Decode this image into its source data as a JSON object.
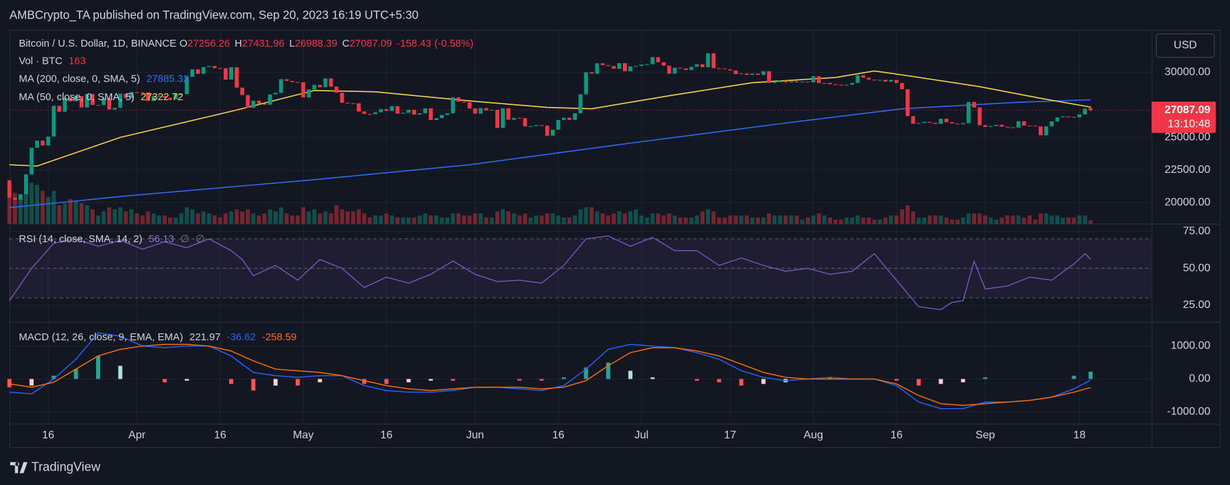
{
  "header": "AMBCrypto_TA published on TradingView.com, Sep 20, 2023 16:19 UTC+5:30",
  "footer": "TradingView",
  "chart_data": {
    "type": "candlestick",
    "title": "Bitcoin / U.S. Dollar, 1D, BINANCE",
    "currency": "USD",
    "grid": true,
    "up_color": "#089981",
    "down_color": "#f23645",
    "xlim": [
      0,
      206
    ],
    "xticks": [
      {
        "value": 7,
        "label": "16"
      },
      {
        "value": 23,
        "label": "Apr"
      },
      {
        "value": 38,
        "label": "16"
      },
      {
        "value": 53,
        "label": "May"
      },
      {
        "value": 68,
        "label": "16"
      },
      {
        "value": 84,
        "label": "Jun"
      },
      {
        "value": 99,
        "label": "16"
      },
      {
        "value": 114,
        "label": "Jul"
      },
      {
        "value": 130,
        "label": "17"
      },
      {
        "value": 145,
        "label": "Aug"
      },
      {
        "value": 160,
        "label": "16"
      },
      {
        "value": 176,
        "label": "Sep"
      },
      {
        "value": 193,
        "label": "18"
      }
    ],
    "ylim": [
      18373,
      33253
    ],
    "yticks": [
      {
        "value": 20000,
        "label": "20000.00"
      },
      {
        "value": 22500,
        "label": "22500.00"
      },
      {
        "value": 25000,
        "label": "25000.00"
      },
      {
        "value": 30000,
        "label": "30000.00"
      }
    ],
    "open": [
      21700,
      20360,
      20190,
      20630,
      22160,
      24200,
      24750,
      24380,
      25060,
      27420,
      26970,
      28040,
      27770,
      28170,
      27300,
      28330,
      27490,
      27490,
      27990,
      27140,
      27270,
      28350,
      28030,
      28480,
      28460,
      28450,
      27800,
      28170,
      28180,
      28040,
      27930,
      28330,
      28330,
      29650,
      30230,
      29880,
      30400,
      30480,
      30320,
      30310,
      29440,
      30390,
      28820,
      28250,
      27270,
      27820,
      27590,
      27510,
      28300,
      28420,
      29470,
      29340,
      29250,
      29230,
      28070,
      28680,
      29030,
      28850,
      29530,
      28900,
      28430,
      27660,
      27630,
      27620,
      26990,
      26800,
      26780,
      26930,
      27170,
      27030,
      27400,
      26820,
      26890,
      27120,
      26750,
      26850,
      27230,
      26330,
      26480,
      26720,
      26850,
      28080,
      27740,
      27700,
      27220,
      26820,
      27250,
      27070,
      27120,
      25730,
      27240,
      26350,
      26500,
      26480,
      25840,
      25860,
      25940,
      25900,
      25130,
      25590,
      26340,
      26510,
      26340,
      26850,
      28310,
      30000,
      29890,
      30690,
      30550,
      30480,
      30270,
      30700,
      30080,
      30450,
      30480,
      30590,
      30620,
      31160,
      30770,
      30510,
      29890,
      30350,
      30290,
      30170,
      30420,
      30620,
      30390,
      31460,
      30320,
      30290,
      30230,
      30140,
      29860,
      29910,
      29800,
      29900,
      29800,
      30080,
      29180,
      29230,
      29350,
      29220,
      29310,
      29230,
      29280,
      29230,
      29700,
      29170,
      29180,
      29080,
      29050,
      29040,
      29040,
      29180,
      29770,
      29580,
      29430,
      29400,
      29420,
      29280,
      29410,
      29170,
      28700,
      26630,
      26050,
      26100,
      26190,
      26120,
      26040,
      26430,
      26160,
      26060,
      26010,
      26090,
      27720,
      27300,
      25940,
      25800,
      25870,
      25970,
      25820,
      25780,
      25750,
      26240,
      25910,
      25900,
      25840,
      25160,
      25850,
      26230,
      26530,
      26610,
      26570,
      26530,
      26760,
      27256.26
    ],
    "close": [
      20360,
      20190,
      20630,
      22160,
      24200,
      24750,
      24380,
      25060,
      27420,
      26970,
      28040,
      27770,
      28170,
      27300,
      28330,
      27490,
      27490,
      27990,
      27140,
      27270,
      28350,
      28030,
      28480,
      28460,
      28450,
      27800,
      28170,
      28180,
      28040,
      27930,
      28330,
      28330,
      29650,
      30230,
      29880,
      30400,
      30480,
      30320,
      30310,
      29440,
      30390,
      28820,
      28250,
      27270,
      27820,
      27590,
      27510,
      28300,
      28420,
      29470,
      29340,
      29250,
      29230,
      28070,
      28680,
      29030,
      28850,
      29530,
      28900,
      28430,
      27660,
      27630,
      27620,
      26990,
      26800,
      26780,
      26930,
      27170,
      27030,
      27400,
      26820,
      26890,
      27120,
      26750,
      26850,
      27230,
      26330,
      26480,
      26720,
      26850,
      28080,
      27740,
      27700,
      27220,
      26820,
      27250,
      27070,
      27120,
      25730,
      27240,
      26350,
      26500,
      26480,
      25840,
      25860,
      25940,
      25900,
      25130,
      25590,
      26340,
      26510,
      26340,
      26850,
      28310,
      30000,
      29890,
      30690,
      30550,
      30480,
      30270,
      30700,
      30080,
      30450,
      30480,
      30590,
      30620,
      31160,
      30770,
      30510,
      29890,
      30350,
      30290,
      30170,
      30420,
      30620,
      30390,
      31460,
      30320,
      30290,
      30230,
      30140,
      29860,
      29910,
      29800,
      29900,
      29800,
      30080,
      29180,
      29230,
      29350,
      29220,
      29310,
      29230,
      29280,
      29230,
      29700,
      29170,
      29180,
      29080,
      29050,
      29040,
      29040,
      29180,
      29770,
      29580,
      29430,
      29400,
      29420,
      29280,
      29410,
      29170,
      28700,
      26630,
      26050,
      26100,
      26190,
      26120,
      26040,
      26430,
      26160,
      26060,
      26010,
      26090,
      27720,
      27300,
      25940,
      25800,
      25870,
      25970,
      25820,
      25780,
      25750,
      26240,
      25910,
      25900,
      25840,
      25160,
      25850,
      26230,
      26530,
      26610,
      26570,
      26530,
      26760,
      27210,
      27087.09
    ],
    "last_bar": {
      "open_label": "O",
      "high_label": "H",
      "high": 27431.96,
      "low_label": "L",
      "low": 26988.39,
      "close_label": "C",
      "change": -158.43,
      "change_pct": {
        "value": -0.58,
        "label": "(-0.58%)"
      },
      "countdown": "13:10:48"
    },
    "volume": {
      "name": "Vol · BTC",
      "ylim": [
        0,
        2300
      ],
      "values": [
        1800,
        1500,
        1200,
        1700,
        2000,
        1900,
        1600,
        1300,
        1600,
        900,
        1000,
        1200,
        1100,
        1000,
        900,
        700,
        400,
        600,
        800,
        700,
        800,
        600,
        700,
        500,
        400,
        600,
        500,
        400,
        400,
        300,
        300,
        500,
        800,
        700,
        500,
        600,
        500,
        400,
        300,
        500,
        600,
        700,
        600,
        700,
        500,
        400,
        500,
        700,
        600,
        800,
        500,
        400,
        400,
        800,
        600,
        700,
        500,
        600,
        500,
        900,
        700,
        600,
        600,
        700,
        500,
        300,
        400,
        400,
        500,
        400,
        300,
        300,
        300,
        300,
        400,
        500,
        400,
        400,
        300,
        300,
        500,
        500,
        400,
        400,
        500,
        500,
        300,
        300,
        600,
        700,
        600,
        500,
        400,
        500,
        300,
        400,
        400,
        500,
        500,
        400,
        300,
        300,
        400,
        700,
        800,
        800,
        600,
        500,
        400,
        500,
        600,
        500,
        600,
        700,
        400,
        300,
        500,
        500,
        400,
        500,
        400,
        300,
        300,
        300,
        400,
        600,
        700,
        600,
        300,
        300,
        400,
        400,
        400,
        400,
        300,
        300,
        300,
        500,
        400,
        400,
        400,
        400,
        400,
        200,
        300,
        400,
        500,
        400,
        300,
        200,
        200,
        300,
        300,
        400,
        300,
        300,
        200,
        200,
        300,
        400,
        400,
        700,
        900,
        600,
        300,
        300,
        400,
        400,
        400,
        300,
        200,
        200,
        300,
        500,
        500,
        500,
        400,
        300,
        200,
        300,
        400,
        400,
        400,
        300,
        400,
        200,
        500,
        500,
        400,
        400,
        300,
        300,
        300,
        400,
        400,
        163
      ]
    },
    "series": [
      {
        "name": "MA (200, close, 0, SMA, 5)",
        "color": "#2f6cf6",
        "x": [
          0,
          21,
          55,
          83,
          111,
          140,
          161,
          182,
          195
        ],
        "values": [
          19600,
          20500,
          21750,
          22900,
          24500,
          26100,
          27200,
          27700,
          27885.32
        ]
      },
      {
        "name": "MA (50, close, 0, SMA, 5)",
        "color": "#f7d543",
        "x": [
          0,
          5,
          20,
          41,
          55,
          66,
          83,
          97,
          105,
          119,
          134,
          149,
          156,
          161,
          175,
          186,
          195
        ],
        "values": [
          22900,
          22800,
          25000,
          27100,
          28600,
          28500,
          27800,
          27300,
          27200,
          28200,
          29200,
          29600,
          30100,
          29800,
          28900,
          28000,
          27322.72
        ]
      }
    ],
    "rsi": {
      "name": "RSI (14, close, SMA, 14, 2)",
      "na_labels": [
        "∅",
        "∅"
      ],
      "color": "#7e57c2",
      "ylim": [
        13.8,
        80.3
      ],
      "levels": [
        70,
        50,
        30
      ],
      "yticks": [
        {
          "value": 25,
          "label": "25.00"
        },
        {
          "value": 50,
          "label": "50.00"
        },
        {
          "value": 75,
          "label": "75.00"
        }
      ],
      "x": [
        0,
        4,
        8,
        12,
        16,
        20,
        24,
        28,
        32,
        36,
        40,
        42,
        44,
        48,
        52,
        56,
        60,
        64,
        68,
        72,
        76,
        80,
        84,
        88,
        92,
        96,
        100,
        104,
        108,
        112,
        116,
        120,
        124,
        128,
        132,
        136,
        140,
        144,
        148,
        152,
        156,
        158,
        160,
        164,
        168,
        170,
        172,
        174,
        176,
        180,
        184,
        188,
        192,
        194,
        195
      ],
      "values": [
        28,
        50,
        67,
        70,
        65,
        69,
        63,
        68,
        64,
        70,
        62,
        56,
        45,
        52,
        42,
        56,
        50,
        37,
        44,
        40,
        46,
        55,
        46,
        41,
        42,
        40,
        52,
        70,
        72,
        65,
        71,
        62,
        62,
        52,
        57,
        52,
        48,
        50,
        46,
        48,
        60,
        51,
        42,
        24,
        22,
        27,
        28,
        55,
        36,
        38,
        44,
        42,
        53,
        60,
        56.13
      ]
    },
    "macd": {
      "name": "MACD (12, 26, close, 9, EMA, EMA)",
      "ylim": [
        -1357,
        1738
      ],
      "yticks": [
        {
          "value": -1000,
          "label": "-1000.00"
        },
        {
          "value": 0,
          "label": "0.00"
        },
        {
          "value": 1000,
          "label": "1000.00"
        }
      ],
      "x": [
        0,
        4,
        8,
        12,
        16,
        20,
        24,
        28,
        32,
        36,
        40,
        44,
        48,
        52,
        56,
        60,
        64,
        68,
        72,
        76,
        80,
        84,
        88,
        92,
        96,
        100,
        104,
        108,
        112,
        116,
        120,
        124,
        128,
        132,
        136,
        140,
        144,
        148,
        152,
        156,
        160,
        164,
        168,
        172,
        176,
        180,
        184,
        188,
        192,
        195
      ],
      "histogram": {
        "values": [
          -250,
          -200,
          100,
          300,
          700,
          400,
          0,
          -100,
          -50,
          0,
          -150,
          -350,
          -200,
          -200,
          -100,
          0,
          -150,
          -150,
          -100,
          -50,
          -50,
          0,
          0,
          -50,
          -50,
          50,
          350,
          500,
          250,
          50,
          0,
          -50,
          -100,
          -200,
          -150,
          -100,
          0,
          50,
          0,
          0,
          -50,
          -200,
          -150,
          -100,
          50,
          0,
          0,
          0,
          100,
          221.97
        ]
      },
      "macd_line": {
        "color": "#2962ff",
        "values": [
          -400,
          -450,
          0,
          600,
          1400,
          1300,
          1000,
          950,
          1000,
          1000,
          700,
          200,
          100,
          50,
          100,
          100,
          -200,
          -350,
          -400,
          -400,
          -350,
          -250,
          -250,
          -300,
          -350,
          -200,
          300,
          900,
          1050,
          1000,
          950,
          800,
          600,
          250,
          50,
          -50,
          0,
          50,
          0,
          0,
          -200,
          -700,
          -900,
          -900,
          -700,
          -700,
          -650,
          -550,
          -300,
          -36.62
        ]
      },
      "signal_line": {
        "color": "#ff6d00",
        "values": [
          -150,
          -250,
          -100,
          300,
          700,
          900,
          1000,
          1050,
          1050,
          1000,
          850,
          550,
          300,
          250,
          200,
          100,
          -50,
          -200,
          -300,
          -350,
          -300,
          -250,
          -250,
          -250,
          -300,
          -250,
          -50,
          400,
          800,
          950,
          950,
          850,
          700,
          450,
          200,
          50,
          0,
          0,
          0,
          0,
          -150,
          -500,
          -750,
          -800,
          -750,
          -700,
          -650,
          -550,
          -400,
          -258.59
        ]
      }
    }
  }
}
